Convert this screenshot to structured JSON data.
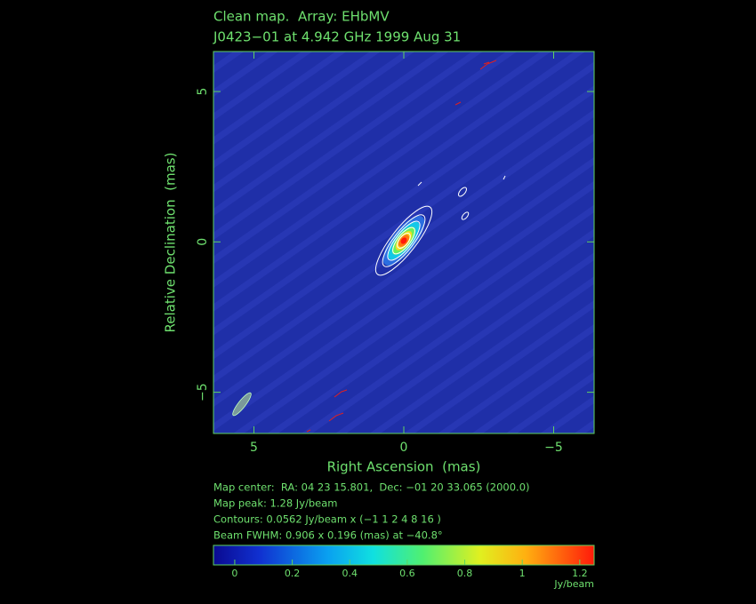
{
  "chart_data": {
    "type": "image",
    "title": "Clean map.  Array: EHbMV",
    "subtitle": "J0423−01 at 4.942 GHz 1999 Aug 31",
    "xlabel": "Right Ascension  (mas)",
    "ylabel": "Relative Declination  (mas)",
    "xlim": [
      6.35,
      -6.35
    ],
    "ylim": [
      -6.37,
      6.33
    ],
    "xticks": [
      5,
      0,
      {
        "value": -5,
        "label": "−5"
      }
    ],
    "yticks": [
      5,
      0,
      {
        "value": -5,
        "label": "−5"
      }
    ],
    "annotations": [
      "Map center:  RA: 04 23 15.801,  Dec: −01 20 33.065 (2000.0)",
      "Map peak: 1.28 Jy/beam",
      "Contours: 0.0562 Jy/beam x (−1 1 2 4 8 16 )",
      "Beam FWHM: 0.906 x 0.196 (mas) at −40.8°"
    ],
    "colorbar": {
      "label": "Jy/beam",
      "lim": [
        -0.074,
        1.25
      ],
      "ticks": [
        0,
        0.2,
        0.4,
        0.6,
        0.8,
        1,
        1.2
      ]
    }
  }
}
